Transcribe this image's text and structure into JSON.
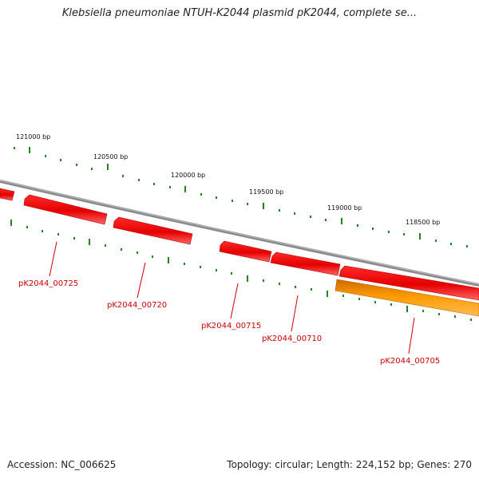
{
  "title": "Klebsiella pneumoniae NTUH-K2044 plasmid pK2044, complete se...",
  "footer": {
    "accession": "Accession: NC_006625",
    "summary": "Topology: circular; Length: 224,152 bp; Genes: 270"
  },
  "colors": {
    "backbone": "#8a8a8a",
    "tick": "#1a8a1a",
    "gene_red": "#ee0000",
    "gene_orange": "#ff9900",
    "label_red": "#cc0000"
  },
  "ruler": {
    "labels": [
      "121000 bp",
      "120500 bp",
      "120000 bp",
      "119500 bp",
      "119000 bp",
      "118500 bp"
    ]
  },
  "genes": [
    {
      "label": "",
      "color": "red"
    },
    {
      "label": "pK2044_00725",
      "color": "red"
    },
    {
      "label": "pK2044_00720",
      "color": "red"
    },
    {
      "label": "pK2044_00715",
      "color": "red"
    },
    {
      "label": "pK2044_00710",
      "color": "red"
    },
    {
      "label": "",
      "color": "red"
    },
    {
      "label": "pK2044_00705",
      "color": "orange"
    }
  ]
}
